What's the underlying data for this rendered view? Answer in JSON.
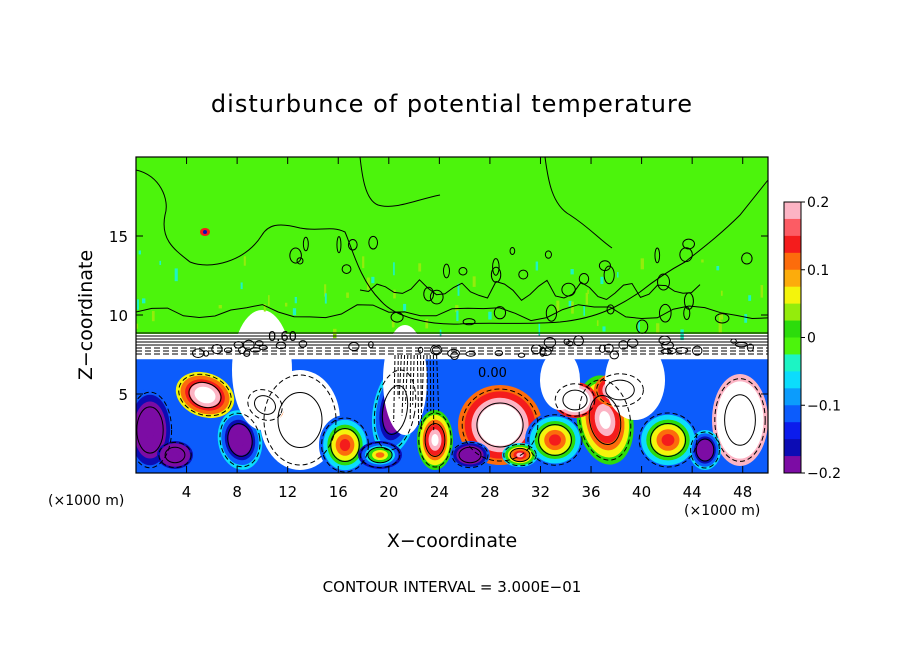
{
  "chart_data": {
    "type": "heatmap",
    "title": "disturbunce of potential temperature",
    "xlabel": "X−coordinate",
    "ylabel": "Z−coordinate",
    "x_unit_label": "(×1000 m)",
    "y_unit_label": "(×1000 m)",
    "footer": "CONTOUR INTERVAL = 3.000E−01",
    "xlim": [
      0,
      50
    ],
    "ylim": [
      0,
      20
    ],
    "x_ticks": [
      4,
      8,
      12,
      16,
      20,
      24,
      28,
      32,
      36,
      40,
      44,
      48
    ],
    "y_ticks": [
      5,
      10,
      15
    ],
    "colorbar": {
      "range": [
        -0.2,
        0.2
      ],
      "tick_values": [
        0.2,
        0.1,
        0,
        -0.1,
        -0.2
      ],
      "tick_labels": [
        "0.2",
        "0.1",
        "0",
        "−0.1",
        "−0.2"
      ],
      "colors": [
        "#fcb4c4",
        "#fc5c64",
        "#f41c1c",
        "#fc6c0c",
        "#fcac0c",
        "#f4f40c",
        "#94ec0c",
        "#2cdc0c",
        "#4cf40c",
        "#1cf4c4",
        "#0cdcfc",
        "#0c9cfc",
        "#0c5cfc",
        "#0c1cec",
        "#0c0cb4",
        "#7c0ca4"
      ]
    },
    "contour_labels": [
      "0.60",
      "0.00"
    ],
    "fields": {
      "background_value": 0,
      "inversion_layer_z": [
        7.2,
        8.8
      ],
      "turbulent_layer_z": [
        0,
        7.5
      ]
    }
  }
}
